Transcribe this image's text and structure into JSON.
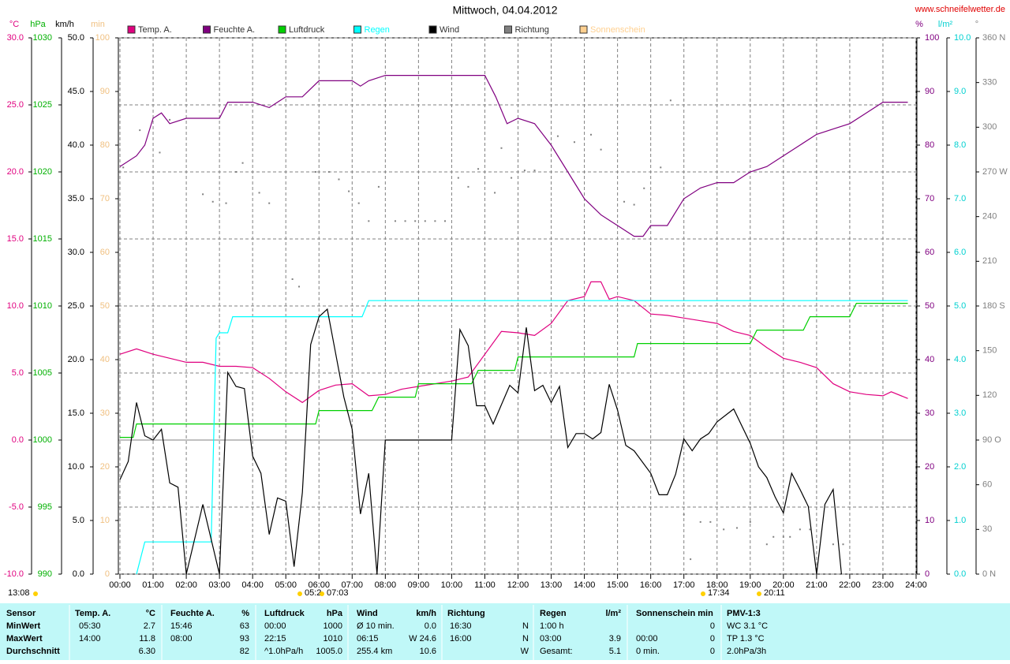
{
  "chart_data": {
    "type": "line",
    "title": "Mittwoch, 04.04.2012",
    "source": "www.schneifelwetter.de",
    "grid": true,
    "xlim": [
      0,
      24
    ],
    "xticks": [
      {
        "value": 0,
        "label": "00:00"
      },
      {
        "value": 1,
        "label": "01:00"
      },
      {
        "value": 2,
        "label": "02:00"
      },
      {
        "value": 3,
        "label": "03:00"
      },
      {
        "value": 4,
        "label": "04:00"
      },
      {
        "value": 5,
        "label": "05:00"
      },
      {
        "value": 6,
        "label": "06:00"
      },
      {
        "value": 7,
        "label": "07:00"
      },
      {
        "value": 8,
        "label": "08:00"
      },
      {
        "value": 9,
        "label": "09:00"
      },
      {
        "value": 10,
        "label": "10:00"
      },
      {
        "value": 11,
        "label": "11:00"
      },
      {
        "value": 12,
        "label": "12:00"
      },
      {
        "value": 13,
        "label": "13:00"
      },
      {
        "value": 14,
        "label": "14:00"
      },
      {
        "value": 15,
        "label": "15:00"
      },
      {
        "value": 16,
        "label": "16:00"
      },
      {
        "value": 17,
        "label": "17:00"
      },
      {
        "value": 18,
        "label": "18:00"
      },
      {
        "value": 19,
        "label": "19:00"
      },
      {
        "value": 20,
        "label": "20:00"
      },
      {
        "value": 21,
        "label": "21:00"
      },
      {
        "value": 22,
        "label": "22:00"
      },
      {
        "value": 23,
        "label": "23:00"
      },
      {
        "value": 24,
        "label": "24:00"
      }
    ],
    "axes": [
      {
        "unit": "°C",
        "color": "#e0007f",
        "ylim": [
          -10,
          30
        ],
        "yticks": [
          {
            "value": 30,
            "label": "30.0"
          },
          {
            "value": 25,
            "label": "25.0"
          },
          {
            "value": 20,
            "label": "20.0"
          },
          {
            "value": 15,
            "label": "15.0"
          },
          {
            "value": 10,
            "label": "10.0"
          },
          {
            "value": 5,
            "label": "5.0"
          },
          {
            "value": 0,
            "label": "0.0"
          },
          {
            "value": -5,
            "label": "-5.0"
          },
          {
            "value": -10,
            "label": "-10.0"
          }
        ]
      },
      {
        "unit": "hPa",
        "color": "#00b000",
        "ylim": [
          990,
          1030
        ],
        "yticks": [
          1030,
          1025,
          1020,
          1015,
          1010,
          1005,
          1000,
          995,
          990
        ]
      },
      {
        "unit": "km/h",
        "color": "#000000",
        "ylim": [
          0,
          50
        ],
        "yticks": [
          {
            "value": 50,
            "label": "50.0"
          },
          {
            "value": 45,
            "label": "45.0"
          },
          {
            "value": 40,
            "label": "40.0"
          },
          {
            "value": 35,
            "label": "35.0"
          },
          {
            "value": 30,
            "label": "30.0"
          },
          {
            "value": 25,
            "label": "25.0"
          },
          {
            "value": 20,
            "label": "20.0"
          },
          {
            "value": 15,
            "label": "15.0"
          },
          {
            "value": 10,
            "label": "10.0"
          },
          {
            "value": 5,
            "label": "5.0"
          },
          {
            "value": 0,
            "label": "0.0"
          }
        ]
      },
      {
        "unit": "min",
        "color": "#f0c080",
        "ylim": [
          0,
          100
        ],
        "yticks": [
          100,
          90,
          80,
          70,
          60,
          50,
          40,
          30,
          20,
          10,
          0
        ]
      },
      {
        "unit": "%",
        "color": "#800080",
        "ylim": [
          0,
          100
        ],
        "yticks": [
          100,
          90,
          80,
          70,
          60,
          50,
          40,
          30,
          20,
          10,
          0
        ]
      },
      {
        "unit": "l/m²",
        "color": "#00d0d0",
        "ylim": [
          0,
          10
        ],
        "yticks": [
          {
            "value": 10,
            "label": "10.0"
          },
          {
            "value": 9,
            "label": "9.0"
          },
          {
            "value": 8,
            "label": "8.0"
          },
          {
            "value": 7,
            "label": "7.0"
          },
          {
            "value": 6,
            "label": "6.0"
          },
          {
            "value": 5,
            "label": "5.0"
          },
          {
            "value": 4,
            "label": "4.0"
          },
          {
            "value": 3,
            "label": "3.0"
          },
          {
            "value": 2,
            "label": "2.0"
          },
          {
            "value": 1,
            "label": "1.0"
          },
          {
            "value": 0,
            "label": "0.0"
          }
        ]
      },
      {
        "unit": "°",
        "color": "#808080",
        "ylim": [
          0,
          360
        ],
        "yticks": [
          {
            "value": 360,
            "label": "360 N"
          },
          330,
          300,
          {
            "value": 270,
            "label": "270 W"
          },
          240,
          210,
          {
            "value": 180,
            "label": "180 S"
          },
          150,
          120,
          {
            "value": 90,
            "label": "90 O"
          },
          60,
          30,
          {
            "value": 0,
            "label": "0 N"
          }
        ]
      }
    ],
    "series": [
      {
        "name": "Temp. A.",
        "color": "#e0007f",
        "axis": 0,
        "mode": "line",
        "x": [
          0,
          0.5,
          1,
          1.5,
          2,
          2.5,
          3,
          3.5,
          4,
          4.5,
          5,
          5.5,
          6,
          6.5,
          7,
          7.5,
          8,
          8.5,
          9,
          9.5,
          10,
          10.5,
          11,
          11.5,
          12,
          12.5,
          13,
          13.5,
          14,
          14.2,
          14.5,
          14.75,
          15,
          15.5,
          16,
          16.5,
          17,
          17.5,
          18,
          18.5,
          19,
          19.5,
          20,
          20.5,
          21,
          21.5,
          22,
          22.5,
          23,
          23.25,
          23.75
        ],
        "values": [
          6.4,
          6.8,
          6.4,
          6.1,
          5.8,
          5.8,
          5.5,
          5.5,
          5.4,
          4.6,
          3.6,
          2.8,
          3.7,
          4.1,
          4.2,
          3.3,
          3.4,
          3.8,
          4.0,
          4.2,
          4.4,
          4.7,
          6.4,
          8.1,
          8.0,
          7.8,
          8.7,
          10.4,
          10.7,
          11.8,
          11.8,
          10.5,
          10.7,
          10.4,
          9.4,
          9.3,
          9.1,
          8.9,
          8.7,
          8.1,
          7.8,
          6.9,
          6.1,
          5.8,
          5.4,
          4.2,
          3.6,
          3.4,
          3.3,
          3.6,
          3.1
        ]
      },
      {
        "name": "Feuchte A.",
        "color": "#800080",
        "axis": 4,
        "mode": "line",
        "x": [
          0,
          0.5,
          0.75,
          1,
          1.25,
          1.5,
          2,
          3,
          3.25,
          4,
          4.5,
          5,
          5.5,
          6,
          7,
          7.25,
          7.5,
          8,
          11,
          11.33,
          11.67,
          12,
          12.5,
          13,
          13.5,
          14,
          14.5,
          14.75,
          15,
          15.5,
          15.77,
          16,
          16.5,
          17,
          17.5,
          18,
          18.5,
          19,
          19.5,
          20,
          20.5,
          21,
          21.5,
          22,
          22.5,
          23,
          23.75
        ],
        "values": [
          76,
          78,
          80,
          85,
          86,
          84,
          85,
          85,
          88,
          88,
          87,
          89,
          89,
          92,
          92,
          91,
          92,
          93,
          93,
          89,
          84,
          85,
          84,
          80,
          75,
          70,
          67,
          66,
          65,
          63,
          63,
          65,
          65,
          70,
          72,
          73,
          73,
          75,
          76,
          78,
          80,
          82,
          83,
          84,
          86,
          88,
          88
        ]
      },
      {
        "name": "Luftdruck",
        "color": "#00d000",
        "axis": 1,
        "mode": "line",
        "x": [
          0,
          0.4,
          0.5,
          5.9,
          6.0,
          7.6,
          7.8,
          8.9,
          9.0,
          10.6,
          10.8,
          11.9,
          12.0,
          15.5,
          15.6,
          19.0,
          19.2,
          20.6,
          20.8,
          22.0,
          22.2,
          23.75
        ],
        "values": [
          1000.2,
          1000.2,
          1001.2,
          1001.2,
          1002.2,
          1002.2,
          1003.2,
          1003.2,
          1004.2,
          1004.2,
          1005.2,
          1005.2,
          1006.2,
          1006.2,
          1007.2,
          1007.2,
          1008.2,
          1008.2,
          1009.2,
          1009.2,
          1010.2,
          1010.2
        ]
      },
      {
        "name": "Regen",
        "color": "#00ffff",
        "axis": 5,
        "mode": "line",
        "x": [
          0.5,
          0.75,
          2.75,
          2.9,
          3.0,
          3.25,
          3.4,
          7.3,
          7.5,
          23.75
        ],
        "values": [
          0,
          0.6,
          0.6,
          4.4,
          4.5,
          4.5,
          4.8,
          4.8,
          5.1,
          5.1
        ]
      },
      {
        "name": "Wind",
        "color": "#000000",
        "axis": 2,
        "mode": "line",
        "x": [
          0,
          0.25,
          0.5,
          0.75,
          1,
          1.25,
          1.5,
          1.75,
          2,
          2.5,
          3,
          3.25,
          3.5,
          3.75,
          4,
          4.25,
          4.5,
          4.75,
          5,
          5.25,
          5.5,
          5.75,
          6,
          6.25,
          6.5,
          6.75,
          7,
          7.25,
          7.5,
          7.75,
          8,
          10,
          10.25,
          10.5,
          10.75,
          11,
          11.25,
          11.75,
          12,
          12.25,
          12.5,
          12.75,
          13,
          13.25,
          13.5,
          13.75,
          14,
          14.25,
          14.5,
          14.75,
          15,
          15.25,
          15.5,
          16,
          16.25,
          16.5,
          16.75,
          17,
          17.25,
          17.5,
          17.75,
          18,
          18.5,
          19,
          19.25,
          19.5,
          19.75,
          20,
          20.25,
          20.5,
          20.75,
          21,
          21.25,
          21.5,
          21.75
        ],
        "values": [
          8.8,
          10.5,
          16,
          12.9,
          12.5,
          13.5,
          8.5,
          8.1,
          0,
          6.5,
          0,
          18.8,
          17.5,
          17.3,
          11,
          9.4,
          3.7,
          7.1,
          6.8,
          0.7,
          7.6,
          21.4,
          24,
          24.7,
          20.6,
          16.5,
          13.5,
          5.6,
          9.4,
          0,
          12.5,
          12.5,
          22.8,
          21.3,
          15.7,
          15.7,
          14,
          17.6,
          16.9,
          23,
          17.1,
          17.6,
          16,
          17.5,
          11.8,
          13.1,
          13.1,
          12.6,
          13.2,
          17.7,
          15.3,
          12,
          11.5,
          9.4,
          7.4,
          7.4,
          9.3,
          12.6,
          11.5,
          12.6,
          13.1,
          14.2,
          15.4,
          12.2,
          10,
          9,
          7.2,
          5.7,
          9.4,
          7.9,
          6.3,
          0,
          6.5,
          7.9,
          0
        ]
      },
      {
        "name": "Richtung",
        "color": "#808080",
        "axis": 6,
        "mode": "markers",
        "x": [
          0.1,
          0.6,
          1.2,
          1.5,
          2.5,
          2.8,
          3.2,
          3.5,
          3.7,
          4.2,
          4.5,
          5.2,
          5.4,
          5.9,
          6.3,
          6.6,
          6.9,
          7.2,
          7.5,
          7.8,
          8.3,
          8.6,
          8.9,
          9.2,
          9.5,
          9.8,
          10.2,
          10.5,
          10.8,
          11.3,
          11.5,
          11.8,
          12.2,
          12.5,
          13.2,
          13.7,
          14.2,
          14.5,
          15.2,
          15.5,
          15.8,
          16.3,
          16.6,
          17.0,
          17.2,
          17.5,
          17.8,
          18.2,
          18.6,
          19.0,
          19.5,
          19.7,
          20.0,
          20.2,
          20.5,
          20.8,
          21.5,
          21.8
        ],
        "values": [
          273,
          298,
          283,
          305,
          255,
          250,
          249,
          270,
          276,
          256,
          249,
          198,
          193,
          270,
          270,
          265,
          257,
          249,
          237,
          260,
          237,
          237,
          237,
          237,
          237,
          237,
          266,
          260,
          272,
          256,
          286,
          266,
          271,
          271,
          294,
          290,
          295,
          285,
          250,
          248,
          259,
          273,
          318,
          40,
          10,
          35,
          35,
          30,
          31,
          35,
          20,
          25,
          25,
          25,
          30,
          30,
          20,
          20
        ]
      },
      {
        "name": "Sonnenschein",
        "color": "#ffd090",
        "axis": 3,
        "mode": "line",
        "x": [],
        "values": []
      }
    ],
    "annotations": [
      "13:08",
      "05:2",
      "07:03",
      "17:34",
      "20:11"
    ]
  },
  "table": {
    "rows": [
      [
        "Sensor",
        "Temp. A.",
        "°C",
        "Feuchte A.",
        "%",
        "Luftdruck",
        "hPa",
        "Wind",
        "km/h",
        "Richtung",
        null,
        "Regen",
        "l/m²",
        "Sonnenschein min",
        null,
        "PMV-1:3"
      ],
      [
        "MinWert",
        "05:30",
        "2.7",
        "15:46",
        "63",
        "00:00",
        "1000",
        "Ø 10 min.",
        "0.0",
        "16:30",
        "N",
        "1:00 h",
        null,
        null,
        "0",
        "WC 3.1 °C"
      ],
      [
        "MaxWert",
        "14:00",
        "11.8",
        "08:00",
        "93",
        "22:15",
        "1010",
        "06:15",
        "W 24.6",
        "16:00",
        "N",
        "03:00",
        "3.9",
        "00:00",
        "0",
        "TP 1.3 °C"
      ],
      [
        "Durchschnitt",
        null,
        "6.30",
        null,
        "82",
        "^1.0hPa/h",
        "1005.0",
        "255.4 km",
        "10.6",
        null,
        "W",
        "Gesamt:",
        "5.1",
        "0 min.",
        "0",
        "2.0hPa/3h"
      ]
    ]
  }
}
